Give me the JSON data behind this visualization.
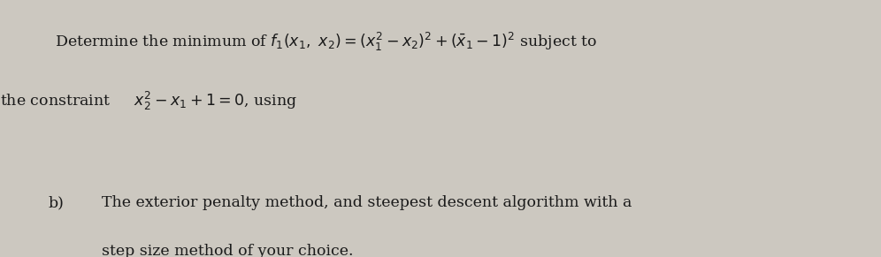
{
  "background_color": "#ccc8c0",
  "text_color": "#1a1a1a",
  "line1": "    Determine the minimum of $f_1(x_1,\\ x_2) = (x_1^2 - x_2)^2 + (\\bar{x}_1 - 1)^2$ subject to",
  "line2": "the constraint $\\;\\; x_2^2 - x_1 + 1 = 0$, using",
  "label_b": "b)",
  "line3": "The exterior penalty method, and steepest descent algorithm with a",
  "line4": "step size method of your choice.",
  "fontsize_main": 12.5,
  "fig_width": 9.96,
  "fig_height": 2.91
}
